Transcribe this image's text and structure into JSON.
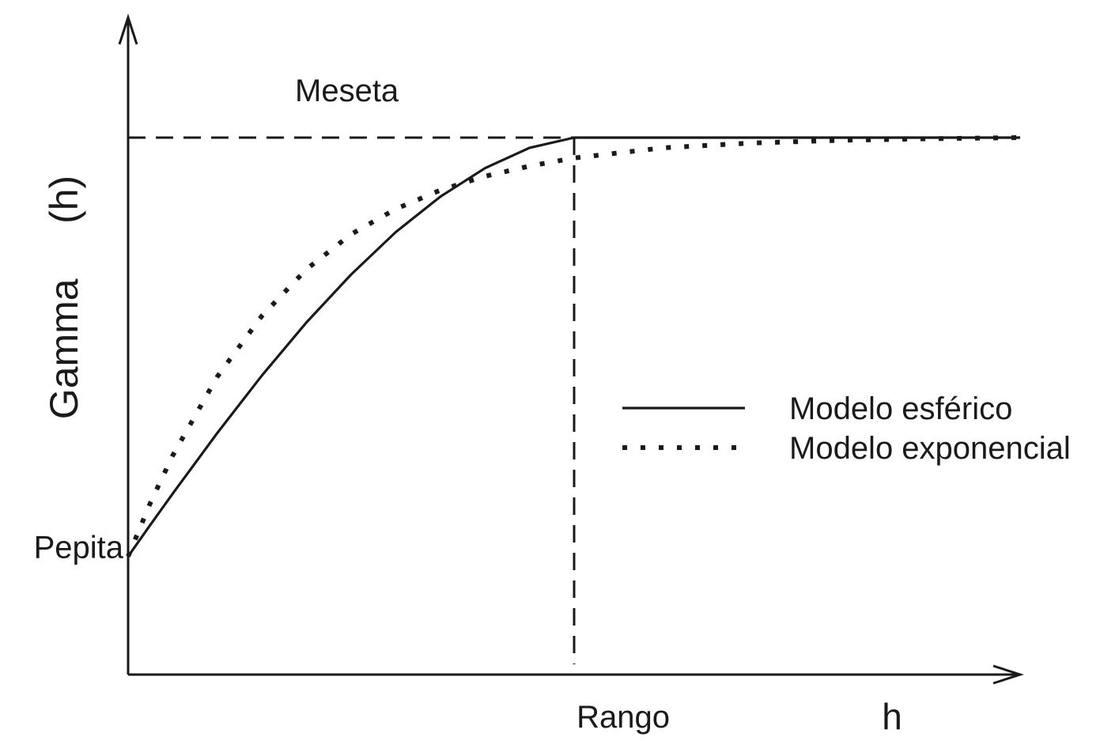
{
  "chart_data": {
    "type": "line",
    "ylabel": "Gamma     (h)",
    "xlabel": "h",
    "xlim": [
      0,
      2
    ],
    "ylim": [
      0,
      1.3
    ],
    "grid": false,
    "legend_placement": "right",
    "annotations": {
      "sill": {
        "text": "Meseta",
        "value": 1.0
      },
      "nugget": {
        "text": "Pepita",
        "value": 0.22
      },
      "range": {
        "text": "Rango",
        "value": 1.0
      }
    },
    "series": [
      {
        "name": "Modelo esférico",
        "style": "solid",
        "x": [
          0,
          0.05,
          0.1,
          0.2,
          0.3,
          0.4,
          0.5,
          0.6,
          0.7,
          0.8,
          0.9,
          1.0,
          1.2,
          1.4,
          1.6,
          1.8,
          2.0
        ],
        "y": [
          0.22,
          0.279,
          0.337,
          0.45,
          0.557,
          0.656,
          0.745,
          0.824,
          0.89,
          0.943,
          0.981,
          1.0,
          1.0,
          1.0,
          1.0,
          1.0,
          1.0
        ]
      },
      {
        "name": "Modelo exponencial",
        "style": "dotted",
        "x": [
          0,
          0.05,
          0.1,
          0.2,
          0.3,
          0.4,
          0.5,
          0.6,
          0.7,
          0.8,
          0.9,
          1.0,
          1.2,
          1.4,
          1.6,
          1.8,
          2.0
        ],
        "y": [
          0.22,
          0.32,
          0.408,
          0.555,
          0.668,
          0.755,
          0.82,
          0.867,
          0.902,
          0.928,
          0.947,
          0.962,
          0.981,
          0.99,
          0.995,
          0.998,
          1.0
        ]
      }
    ]
  }
}
